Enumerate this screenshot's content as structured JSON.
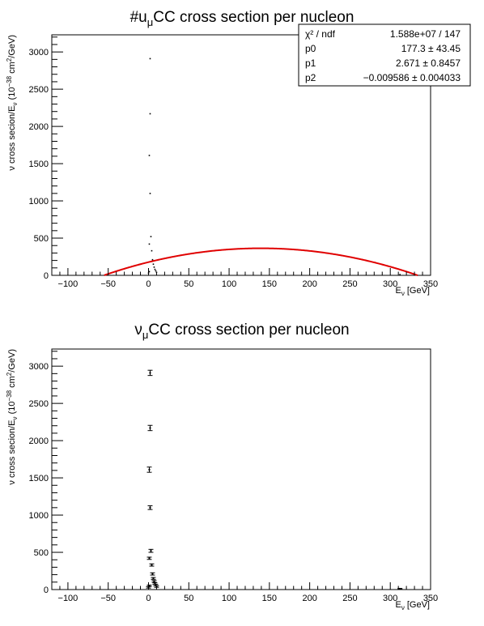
{
  "chart_data": [
    {
      "type": "scatter",
      "title": "#u_{μ}CC cross section per nucleon",
      "title_parts": {
        "pre": "#u",
        "sub": "μ",
        "post": "CC cross section per nucleon"
      },
      "xlabel": "E_{ν} [GeV]",
      "xlabel_parts": {
        "pre": "E",
        "sub": "ν",
        "post": " [GeV]"
      },
      "ylabel": "ν cross secion/E_{ν} (10^{-38} cm^{2}/GeV)",
      "ylabel_parts": {
        "a": "ν cross secion/E",
        "a_sub": "ν",
        "b": " (10",
        "b_sup": "−38",
        "c": " cm",
        "c_sup": "2",
        "d": "/GeV)"
      },
      "xlim": [
        -120,
        350
      ],
      "ylim": [
        0,
        3230
      ],
      "xticks": [
        -100,
        -50,
        0,
        50,
        100,
        150,
        200,
        250,
        300,
        350
      ],
      "yticks": [
        0,
        500,
        1000,
        1500,
        2000,
        2500,
        3000
      ],
      "grid": false,
      "points": [
        {
          "x": 2,
          "y": 2910
        },
        {
          "x": 2,
          "y": 2170
        },
        {
          "x": 1,
          "y": 1610
        },
        {
          "x": 2,
          "y": 1100
        },
        {
          "x": 3,
          "y": 520
        },
        {
          "x": 1,
          "y": 420
        },
        {
          "x": 4,
          "y": 330
        },
        {
          "x": 5,
          "y": 210
        },
        {
          "x": 6,
          "y": 150
        },
        {
          "x": 7,
          "y": 110
        },
        {
          "x": 8,
          "y": 80
        },
        {
          "x": 9,
          "y": 60
        },
        {
          "x": 10,
          "y": 40
        },
        {
          "x": 1,
          "y": 50
        },
        {
          "x": 0,
          "y": 30
        },
        {
          "x": 312,
          "y": 10
        }
      ],
      "fit": {
        "function": "p0 + p1*x + p2*x^2",
        "color": "#e00000",
        "p0": 177.3,
        "p1": 2.671,
        "p2": -0.009586
      },
      "stats_box": {
        "placement": "top-right",
        "rows": [
          {
            "label": "χ² / ndf",
            "value": "1.588e+07 / 147"
          },
          {
            "label": "p0",
            "value": "177.3 ± 43.45"
          },
          {
            "label": "p1",
            "value": "2.671 ± 0.8457"
          },
          {
            "label": "p2",
            "value": "−0.009586 ± 0.004033"
          }
        ]
      }
    },
    {
      "type": "scatter",
      "title": "ν_{μ}CC cross section per nucleon",
      "title_parts": {
        "pre": "ν",
        "sub": "μ",
        "post": "CC cross section per nucleon"
      },
      "xlabel": "E_{ν} [GeV]",
      "xlabel_parts": {
        "pre": "E",
        "sub": "ν",
        "post": " [GeV]"
      },
      "ylabel": "ν cross secion/E_{ν} (10^{-38} cm^{2}/GeV)",
      "ylabel_parts": {
        "a": "ν cross secion/E",
        "a_sub": "ν",
        "b": " (10",
        "b_sup": "−38",
        "c": " cm",
        "c_sup": "2",
        "d": "/GeV)"
      },
      "xlim": [
        -120,
        350
      ],
      "ylim": [
        0,
        3230
      ],
      "xticks": [
        -100,
        -50,
        0,
        50,
        100,
        150,
        200,
        250,
        300,
        350
      ],
      "yticks": [
        0,
        500,
        1000,
        1500,
        2000,
        2500,
        3000
      ],
      "grid": false,
      "points": [
        {
          "x": 2,
          "y": 2910,
          "err": 35
        },
        {
          "x": 2,
          "y": 2170,
          "err": 35
        },
        {
          "x": 1,
          "y": 1610,
          "err": 35
        },
        {
          "x": 2,
          "y": 1100,
          "err": 25
        },
        {
          "x": 3,
          "y": 520,
          "err": 20
        },
        {
          "x": 1,
          "y": 420,
          "err": 15
        },
        {
          "x": 4,
          "y": 330,
          "err": 15
        },
        {
          "x": 5,
          "y": 210,
          "err": 15
        },
        {
          "x": 6,
          "y": 150,
          "err": 12
        },
        {
          "x": 7,
          "y": 110,
          "err": 12
        },
        {
          "x": 8,
          "y": 80,
          "err": 10
        },
        {
          "x": 9,
          "y": 60,
          "err": 10
        },
        {
          "x": 10,
          "y": 40,
          "err": 10
        },
        {
          "x": 1,
          "y": 50,
          "err": 10
        },
        {
          "x": 0,
          "y": 30,
          "err": 10
        },
        {
          "x": 312,
          "y": 10,
          "err": 5
        }
      ]
    }
  ]
}
